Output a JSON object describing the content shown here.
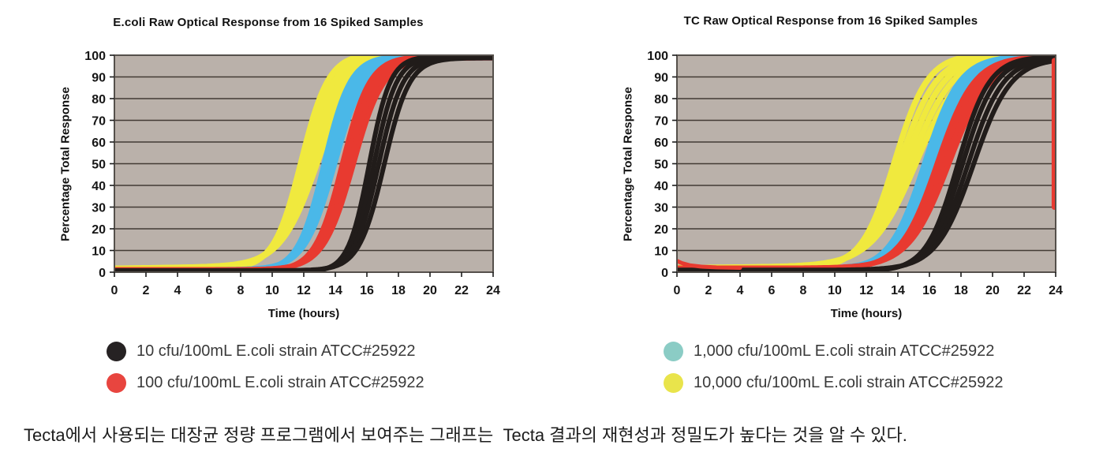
{
  "page": {
    "caption": "Tecta에서 사용되는 대장균 정량 프로그램에서 보여주는 그래프는  Tecta 결과의 재현성과 정밀도가 높다는 것을 알 수 있다."
  },
  "chart_data": [
    {
      "type": "line",
      "title": "E.coli Raw Optical Response from 16 Spiked Samples",
      "xlabel": "Time (hours)",
      "ylabel": "Percentage Total Response",
      "xlim": [
        0,
        24
      ],
      "ylim": [
        0,
        100
      ],
      "x_ticks": [
        0,
        2,
        4,
        6,
        8,
        10,
        12,
        14,
        16,
        18,
        20,
        22,
        24
      ],
      "y_ticks": [
        0,
        10,
        20,
        30,
        40,
        50,
        60,
        70,
        80,
        90,
        100
      ],
      "grid": "horizontal",
      "plot_bg": "#bab1aa",
      "grid_color": "#433b35",
      "border_color": "#55504b",
      "legend_position": "below",
      "series": [
        {
          "name": "10,000 cfu/100mL E.coli strain ATCC#25922",
          "color": "#f0e93e",
          "width": 7.5,
          "baseline": 1.2,
          "baseline_ramp": 0.1,
          "top": 99.8,
          "midpoints": [
            11.85,
            12.1,
            12.35,
            12.6,
            12.9
          ],
          "steepness": [
            1.15,
            1.05,
            0.98,
            0.9,
            0.85
          ]
        },
        {
          "name": "1,000 cfu/100mL E.coli strain ATCC#25922",
          "color": "#4ab8e8",
          "width": 7,
          "baseline": 0.7,
          "baseline_ramp": 0,
          "top": 99.6,
          "midpoints": [
            13.3,
            13.5,
            13.7,
            13.95
          ],
          "steepness": [
            1.2,
            1.15,
            1.1,
            1.05
          ]
        },
        {
          "name": "100 cfu/100mL E.coli strain ATCC#25922",
          "color": "#e83a30",
          "width": 6.5,
          "baseline": 0.8,
          "baseline_ramp": 0,
          "top": 99.5,
          "midpoints": [
            14.45,
            14.7,
            14.9,
            15.15
          ],
          "steepness": [
            1.15,
            1.1,
            1.08,
            1.05
          ]
        },
        {
          "name": "10 cfu/100mL E.coli strain ATCC#25922",
          "color": "#211c1a",
          "width": 6,
          "baseline": 0.4,
          "baseline_ramp": 0,
          "top": 99.5,
          "midpoints": [
            16.15,
            16.45,
            16.75,
            17.1
          ],
          "steepness": [
            1.5,
            1.4,
            1.3,
            1.25
          ]
        }
      ],
      "annotations": []
    },
    {
      "type": "line",
      "title": "TC Raw Optical Response from 16 Spiked Samples",
      "xlabel": "Time (hours)",
      "ylabel": "Percentage Total Response",
      "xlim": [
        0,
        24
      ],
      "ylim": [
        0,
        100
      ],
      "x_ticks": [
        0,
        2,
        4,
        6,
        8,
        10,
        12,
        14,
        16,
        18,
        20,
        22,
        24
      ],
      "y_ticks": [
        0,
        10,
        20,
        30,
        40,
        50,
        60,
        70,
        80,
        90,
        100
      ],
      "grid": "horizontal",
      "plot_bg": "#bab1aa",
      "grid_color": "#433b35",
      "border_color": "#55504b",
      "legend_position": "below",
      "series": [
        {
          "name": "10,000 cfu/100mL E.coli strain ATCC#25922",
          "color": "#f0e93e",
          "width": 7.5,
          "baseline": 1.5,
          "baseline_ramp": 0.06,
          "top": 99.8,
          "midpoints": [
            13.8,
            14.15,
            14.5,
            14.85,
            15.2
          ],
          "steepness": [
            0.95,
            0.85,
            0.8,
            0.75,
            0.7
          ]
        },
        {
          "name": "1,000 cfu/100mL E.coli strain ATCC#25922",
          "color": "#4ab8e8",
          "width": 7,
          "baseline": 1.0,
          "baseline_ramp": 0,
          "top": 99.6,
          "midpoints": [
            15.7,
            15.95,
            16.2,
            16.45
          ],
          "steepness": [
            0.9,
            0.85,
            0.85,
            0.8
          ]
        },
        {
          "name": "100 cfu/100mL E.coli strain ATCC#25922",
          "color": "#e83a30",
          "width": 6.5,
          "baseline": 1.5,
          "baseline_ramp": 0,
          "top": 99.5,
          "midpoints": [
            16.5,
            16.75,
            17.0,
            17.25
          ],
          "steepness": [
            0.85,
            0.82,
            0.8,
            0.78
          ]
        },
        {
          "name": "10 cfu/100mL E.coli strain ATCC#25922",
          "color": "#211c1a",
          "width": 6,
          "baseline": 0.6,
          "baseline_ramp": 0,
          "top": 99.4,
          "midpoints": [
            17.8,
            18.1,
            18.45,
            18.8
          ],
          "steepness": [
            1.0,
            0.95,
            0.9,
            0.85
          ]
        }
      ],
      "annotations": [
        {
          "type": "vline",
          "x": 23.92,
          "from": 30,
          "to": 97.5,
          "color": "#e83a30",
          "width": 7
        },
        {
          "type": "polyline",
          "color": "#e83a30",
          "width": 5,
          "points": [
            [
              0,
              5.2
            ],
            [
              0.3,
              4.2
            ],
            [
              0.8,
              3.2
            ],
            [
              1.5,
              2.6
            ],
            [
              2.5,
              2.2
            ],
            [
              4,
              2.0
            ]
          ]
        }
      ]
    }
  ],
  "legends": {
    "left": {
      "items": [
        {
          "color": "#262223",
          "label": "10 cfu/100mL E.coli strain ATCC#25922"
        },
        {
          "color": "#e8453f",
          "label": "100 cfu/100mL E.coli strain ATCC#25922"
        }
      ]
    },
    "right": {
      "items": [
        {
          "color": "#8bccc5",
          "label": "1,000 cfu/100mL E.coli strain ATCC#25922"
        },
        {
          "color": "#e9e44b",
          "label": "10,000 cfu/100mL E.coli strain ATCC#25922"
        }
      ]
    }
  }
}
